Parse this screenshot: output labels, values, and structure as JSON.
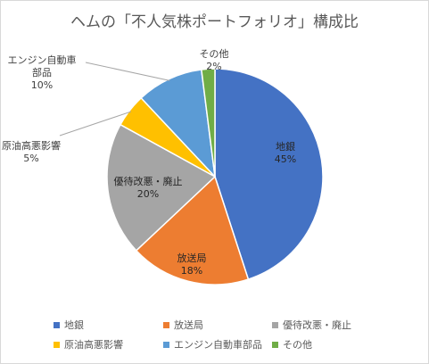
{
  "colors": {
    "地銀": "#4472c4",
    "放送局": "#ed7d31",
    "優待改悪・廃止": "#a5a5a5",
    "原油高悪影響": "#ffc000",
    "エンジン自動車部品": "#5b9bd5",
    "その他": "#70ad47"
  },
  "chart_data": {
    "type": "pie",
    "title": "ヘムの「不人気株ポートフォリオ」構成比",
    "legend_position": "bottom",
    "start_angle_deg": 0,
    "direction": "clockwise",
    "slices": [
      {
        "name": "地銀",
        "value": 45,
        "label_name": "地銀",
        "label_value": "45%"
      },
      {
        "name": "放送局",
        "value": 18,
        "label_name": "放送局",
        "label_value": "18%"
      },
      {
        "name": "優待改悪・廃止",
        "value": 20,
        "label_name": "優待改悪・廃止",
        "label_value": "20%"
      },
      {
        "name": "原油高悪影響",
        "value": 5,
        "label_name": "原油高悪影響",
        "label_value": "5%"
      },
      {
        "name": "エンジン自動車部品",
        "value": 10,
        "label_name_lines": [
          "エンジン自動車",
          "部品"
        ],
        "label_value": "10%"
      },
      {
        "name": "その他",
        "value": 2,
        "label_name": "その他",
        "label_value": "2%"
      }
    ]
  }
}
